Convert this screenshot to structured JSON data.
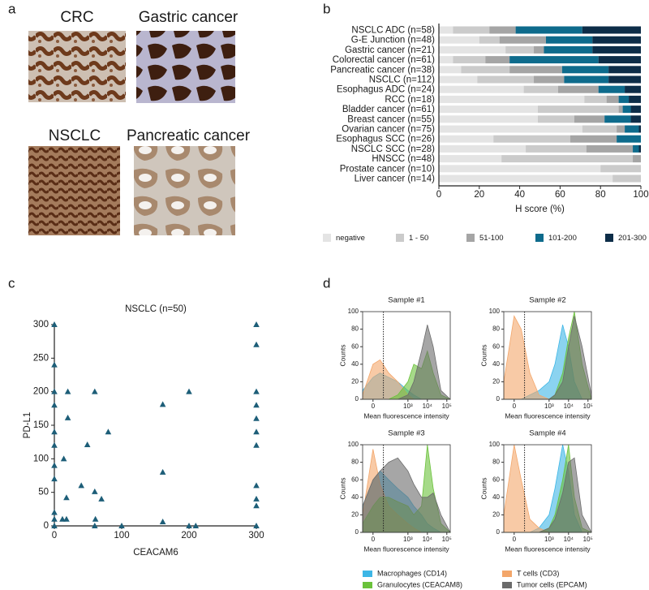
{
  "panel_labels": [
    "a",
    "b",
    "c",
    "d"
  ],
  "panel_a": {
    "images": [
      "CRC",
      "Gastric cancer",
      "NSCLC",
      "Pancreatic cancer"
    ]
  },
  "chart_data": [
    {
      "type": "stacked-hbar",
      "xlabel": "H score (%)",
      "xlim": [
        0,
        100
      ],
      "xticks": [
        0,
        20,
        40,
        60,
        80,
        100
      ],
      "categories": [
        "NSCLC ADC (n=58)",
        "G-E Junction (n=48)",
        "Gastric cancer (n=21)",
        "Colorectal cancer (n=61)",
        "Pancreatic cancer (n=38)",
        "NSCLC (n=112)",
        "Esophagus ADC (n=24)",
        "RCC (n=18)",
        "Bladder cancer (n=61)",
        "Breast cancer (n=55)",
        "Ovarian cancer (n=75)",
        "Esophagus SCC (n=26)",
        "NSCLC SCC (n=28)",
        "HNSCC (n=48)",
        "Prostate cancer (n=10)",
        "Liver cancer (n=14)"
      ],
      "series": [
        {
          "name": "negative",
          "color": "#e4e4e4",
          "values": [
            7,
            20,
            33,
            7,
            11,
            19,
            42,
            72,
            49,
            49,
            71,
            27,
            43,
            31,
            80,
            86
          ]
        },
        {
          "name": "1 - 50",
          "color": "#cbcbcb",
          "values": [
            18,
            10,
            14,
            16,
            24,
            28,
            17,
            11,
            40,
            18,
            17,
            38,
            30,
            65,
            20,
            14
          ]
        },
        {
          "name": "51-100",
          "color": "#a5a5a5",
          "values": [
            13,
            23,
            5,
            12,
            26,
            15,
            20,
            6,
            2,
            15,
            4,
            23,
            23,
            4,
            0,
            0
          ]
        },
        {
          "name": "101-200",
          "color": "#0e6b8c",
          "values": [
            33,
            23,
            24,
            44,
            23,
            22,
            13,
            5,
            4,
            13,
            7,
            12,
            3,
            0,
            0,
            0
          ]
        },
        {
          "name": "201-300",
          "color": "#0d2d48",
          "values": [
            29,
            24,
            24,
            21,
            16,
            16,
            8,
            6,
            5,
            5,
            1,
            0,
            1,
            0,
            0,
            0
          ]
        }
      ]
    },
    {
      "type": "scatter",
      "title": "NSCLC (n=50)",
      "xlabel": "CEACAM6",
      "ylabel": "PD-L1",
      "color": "#1d5e78",
      "xlim": [
        0,
        300
      ],
      "ylim": [
        0,
        300
      ],
      "xticks": [
        0,
        100,
        200,
        300
      ],
      "yticks": [
        0,
        50,
        100,
        150,
        200,
        250,
        300
      ],
      "x": [
        0,
        0,
        0,
        0,
        0,
        0,
        0,
        0,
        0,
        0,
        0,
        12,
        18,
        14,
        18,
        20,
        20,
        40,
        49,
        60,
        61,
        60,
        60,
        70,
        80,
        100,
        161,
        161,
        161,
        200,
        200,
        210,
        300,
        300,
        300,
        300,
        300,
        300,
        300,
        300,
        300,
        300,
        300
      ],
      "values": [
        300,
        240,
        200,
        180,
        140,
        120,
        90,
        70,
        20,
        10,
        0,
        10,
        10,
        100,
        42,
        200,
        161,
        60,
        121,
        200,
        10,
        0,
        51,
        40,
        140,
        0,
        181,
        80,
        6,
        200,
        0,
        0,
        300,
        270,
        200,
        180,
        160,
        140,
        120,
        60,
        40,
        30,
        0
      ]
    },
    {
      "type": "flow-histograms",
      "xlabel": "Mean fluorescence intensity",
      "ylabel": "Counts",
      "xscale": "biexponential",
      "xlim": [
        -50,
        150000
      ],
      "ylim": [
        0,
        100
      ],
      "xticks": [
        0,
        {
          "value": 1000,
          "label": "10³"
        },
        {
          "value": 10000,
          "label": "10⁴"
        },
        {
          "value": 100000,
          "label": "10⁵"
        }
      ],
      "yticks": [
        0,
        20,
        40,
        60,
        80,
        100
      ],
      "gate_x": 50,
      "x": [
        -50,
        0,
        30,
        100,
        300,
        1000,
        2000,
        5000,
        10000,
        20000,
        50000,
        150000
      ],
      "series": [
        {
          "name": "Macrophages (CD14)",
          "color": "#3db6e6"
        },
        {
          "name": "T cells (CD3)",
          "color": "#f3a66a"
        },
        {
          "name": "Granulocytes (CEACAM8)",
          "color": "#6bc23b"
        },
        {
          "name": "Tumor cells (EPCAM)",
          "color": "#6b6b6b"
        }
      ],
      "panels": [
        {
          "title": "Sample #1",
          "series_values": [
            [
              10,
              25,
              30,
              25,
              20,
              10,
              5,
              0,
              0,
              0,
              0,
              0
            ],
            [
              5,
              40,
              45,
              30,
              20,
              5,
              0,
              0,
              0,
              0,
              0,
              0
            ],
            [
              0,
              0,
              0,
              0,
              5,
              20,
              40,
              35,
              55,
              30,
              5,
              0
            ],
            [
              0,
              0,
              0,
              0,
              0,
              5,
              20,
              55,
              85,
              60,
              10,
              0
            ]
          ]
        },
        {
          "title": "Sample #2",
          "series_values": [
            [
              0,
              0,
              0,
              5,
              10,
              20,
              40,
              85,
              60,
              20,
              0,
              0
            ],
            [
              20,
              95,
              80,
              30,
              5,
              0,
              0,
              0,
              0,
              0,
              0,
              0
            ],
            [
              0,
              0,
              0,
              0,
              0,
              0,
              5,
              30,
              70,
              100,
              40,
              0
            ],
            [
              0,
              0,
              0,
              0,
              0,
              0,
              5,
              20,
              60,
              95,
              60,
              5
            ]
          ]
        },
        {
          "title": "Sample #3",
          "series_values": [
            [
              30,
              60,
              70,
              60,
              50,
              40,
              30,
              20,
              10,
              5,
              0,
              0
            ],
            [
              20,
              95,
              55,
              30,
              20,
              10,
              5,
              0,
              0,
              0,
              0,
              0
            ],
            [
              10,
              30,
              40,
              40,
              35,
              30,
              20,
              30,
              100,
              50,
              10,
              0
            ],
            [
              30,
              60,
              70,
              80,
              85,
              70,
              55,
              40,
              40,
              45,
              20,
              0
            ]
          ]
        },
        {
          "title": "Sample #4",
          "series_values": [
            [
              0,
              0,
              0,
              0,
              5,
              20,
              50,
              100,
              70,
              20,
              0,
              0
            ],
            [
              20,
              100,
              60,
              15,
              5,
              0,
              0,
              0,
              0,
              0,
              0,
              0
            ],
            [
              0,
              0,
              0,
              0,
              0,
              5,
              20,
              60,
              100,
              40,
              5,
              0
            ],
            [
              0,
              0,
              0,
              0,
              0,
              5,
              15,
              45,
              80,
              85,
              20,
              0
            ]
          ]
        }
      ]
    }
  ]
}
